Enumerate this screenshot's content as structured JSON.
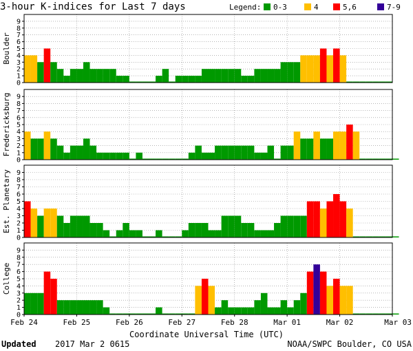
{
  "title": "3-hour K-indices for Last 7 days",
  "legend": {
    "label": "Legend:",
    "items": [
      {
        "label": "0-3",
        "color": "#009900"
      },
      {
        "label": "4",
        "color": "#ffbf00"
      },
      {
        "label": "5,6",
        "color": "#ff0000"
      },
      {
        "label": "7-9",
        "color": "#330099"
      }
    ]
  },
  "xlabel": "Coordinate Universal Time (UTC)",
  "xticks": [
    "Feb 24",
    "Feb 25",
    "Feb 26",
    "Feb 27",
    "Feb 28",
    "Mar 01",
    "Mar 02",
    "Mar 03"
  ],
  "yticks": [
    "0",
    "1",
    "2",
    "3",
    "4",
    "5",
    "6",
    "7",
    "8",
    "9"
  ],
  "footer": {
    "updated_label": "Updated",
    "updated_value": "2017 Mar  2 0615",
    "source": "NOAA/SWPC Boulder, CO USA"
  },
  "chart_data": {
    "type": "bar",
    "title": "3-hour K-indices for Last 7 days",
    "xlabel": "Coordinate Universal Time (UTC)",
    "ylim": [
      0,
      9
    ],
    "interval_hours": 3,
    "x_range": [
      "Feb 24",
      "Mar 03"
    ],
    "series": [
      {
        "name": "Boulder",
        "values": [
          4,
          4,
          3,
          5,
          3,
          2,
          1,
          2,
          2,
          3,
          2,
          2,
          2,
          2,
          1,
          1,
          0,
          0,
          0,
          0,
          1,
          2,
          0,
          1,
          1,
          1,
          1,
          2,
          2,
          2,
          2,
          2,
          2,
          1,
          1,
          2,
          2,
          2,
          2,
          3,
          3,
          3,
          4,
          4,
          4,
          5,
          4,
          5,
          4,
          0,
          0,
          0,
          0,
          0,
          0,
          0
        ]
      },
      {
        "name": "Fredericksburg",
        "values": [
          4,
          3,
          3,
          4,
          3,
          2,
          1,
          2,
          2,
          3,
          2,
          1,
          1,
          1,
          1,
          1,
          0,
          1,
          0,
          0,
          0,
          0,
          0,
          0,
          0,
          1,
          2,
          1,
          1,
          2,
          2,
          2,
          2,
          2,
          2,
          1,
          1,
          2,
          0,
          2,
          2,
          4,
          3,
          3,
          4,
          3,
          3,
          4,
          4,
          5,
          4,
          0,
          0,
          0,
          0,
          0,
          0
        ]
      },
      {
        "name": "Est. Planetary",
        "values": [
          5,
          4,
          3,
          4,
          4,
          3,
          2,
          3,
          3,
          3,
          2,
          2,
          1,
          0,
          1,
          2,
          1,
          1,
          0,
          0,
          1,
          0,
          0,
          0,
          1,
          2,
          2,
          2,
          1,
          1,
          3,
          3,
          3,
          2,
          2,
          1,
          1,
          1,
          2,
          3,
          3,
          3,
          3,
          5,
          5,
          4,
          5,
          6,
          5,
          4,
          0,
          0,
          0,
          0,
          0,
          0,
          0
        ]
      },
      {
        "name": "College",
        "values": [
          3,
          3,
          3,
          6,
          5,
          2,
          2,
          2,
          2,
          2,
          2,
          2,
          1,
          0,
          0,
          0,
          0,
          0,
          0,
          0,
          1,
          0,
          0,
          0,
          0,
          0,
          4,
          5,
          4,
          1,
          2,
          1,
          1,
          1,
          1,
          2,
          3,
          1,
          1,
          2,
          1,
          2,
          3,
          6,
          7,
          6,
          4,
          5,
          4,
          4,
          0,
          0,
          0,
          0,
          0,
          0,
          0
        ]
      }
    ]
  }
}
